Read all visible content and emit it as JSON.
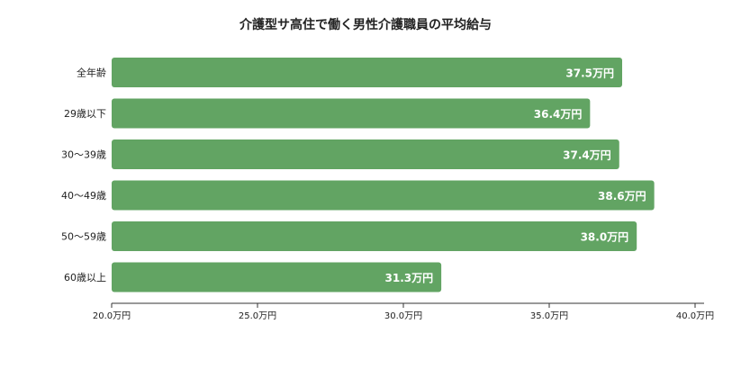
{
  "chart_data": {
    "type": "bar",
    "orientation": "horizontal",
    "title": "介護型サ高住で働く男性介護職員の平均給与",
    "categories": [
      "全年齢",
      "29歳以下",
      "30～39歳",
      "40～49歳",
      "50～59歳",
      "60歳以上"
    ],
    "values": [
      37.5,
      36.4,
      37.4,
      38.6,
      38.0,
      31.3
    ],
    "value_labels": [
      "37.5万円",
      "36.4万円",
      "37.4万円",
      "38.6万円",
      "38.0万円",
      "31.3万円"
    ],
    "xlim": [
      20,
      40
    ],
    "xticks": [
      20,
      25,
      30,
      35,
      40
    ],
    "xtick_labels": [
      "20.0万円",
      "25.0万円",
      "30.0万円",
      "35.0万円",
      "40.0万円"
    ],
    "xlabel": "",
    "ylabel": "",
    "grid": false,
    "legend": "none",
    "bar_color": "#62a463",
    "label_color": "#ffffff",
    "axis_color": "#333333"
  }
}
